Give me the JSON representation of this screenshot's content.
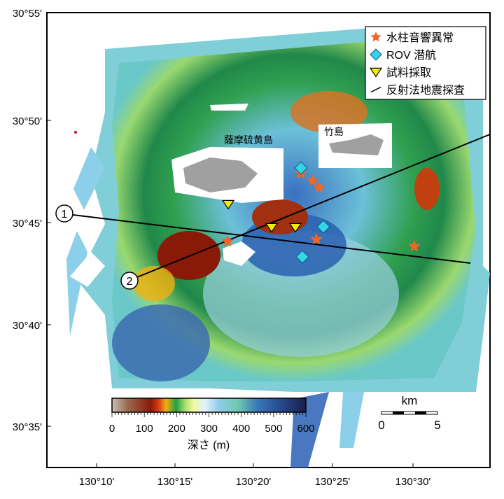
{
  "map": {
    "lat_ticks": [
      "30°55'",
      "30°50'",
      "30°45'",
      "30°40'",
      "30°35'"
    ],
    "lon_ticks": [
      "130°10'",
      "130°15'",
      "130°20'",
      "130°25'",
      "130°30'"
    ],
    "islands": [
      "薩摩硫黄島",
      "竹島"
    ],
    "lines": [
      "1",
      "2"
    ]
  },
  "legend": {
    "items": [
      {
        "symbol": "star",
        "color": "#f26522",
        "label": "水柱音響異常"
      },
      {
        "symbol": "diamond",
        "color": "#33d6e6",
        "label": "ROV 潜航"
      },
      {
        "symbol": "triangle-down",
        "color": "#f5e90e",
        "label": "試料採取"
      },
      {
        "symbol": "line",
        "color": "#000000",
        "label": "反射法地震探査"
      }
    ]
  },
  "colorbar": {
    "ticks": [
      "0",
      "100",
      "200",
      "300",
      "400",
      "500",
      "600"
    ],
    "label": "深さ (m)",
    "range": [
      0,
      600
    ]
  },
  "scalebar": {
    "unit": "km",
    "ticks": [
      "0",
      "5"
    ]
  }
}
